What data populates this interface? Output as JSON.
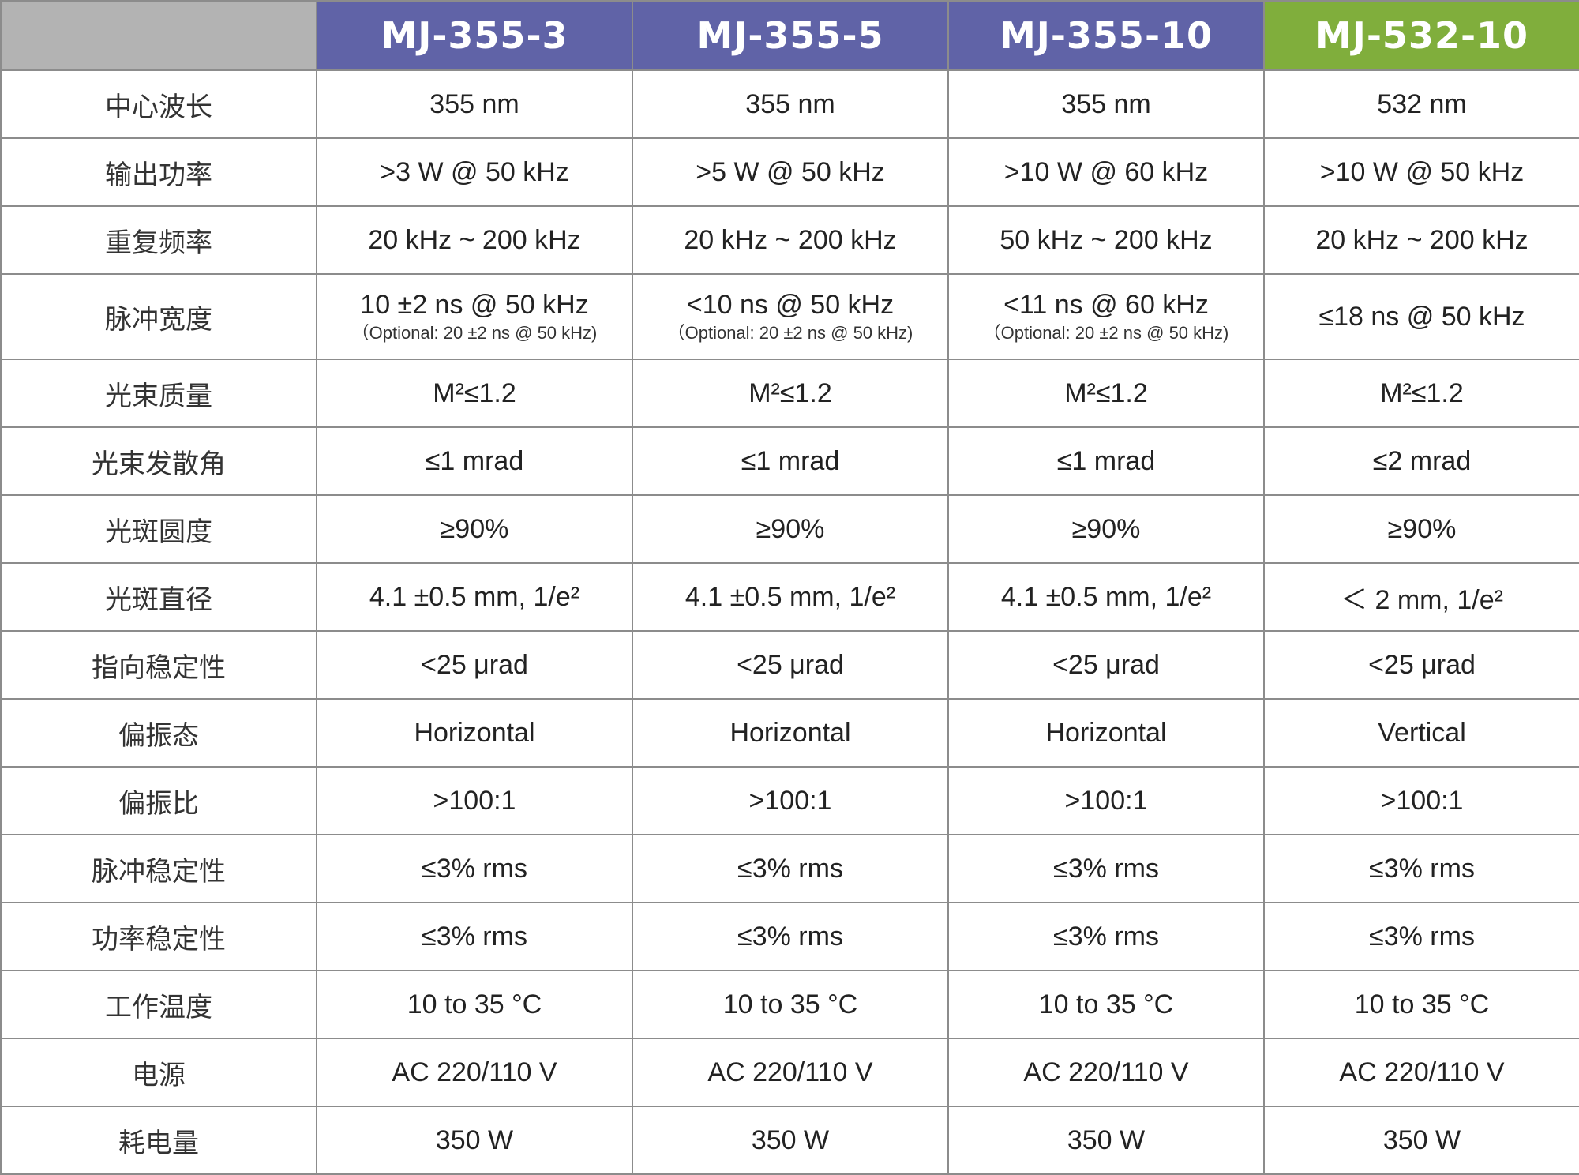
{
  "header": {
    "corner": "",
    "models": [
      {
        "name": "MJ-355-3",
        "color": "#6063a7"
      },
      {
        "name": "MJ-355-5",
        "color": "#6063a7"
      },
      {
        "name": "MJ-355-10",
        "color": "#6063a7"
      },
      {
        "name": "MJ-532-10",
        "color": "#80ae3c"
      }
    ]
  },
  "rows": [
    {
      "label": "中心波长",
      "values": [
        "355 nm",
        "355 nm",
        "355 nm",
        "532 nm"
      ]
    },
    {
      "label": "输出功率",
      "values": [
        ">3 W @ 50 kHz",
        ">5 W @ 50 kHz",
        ">10 W @ 60 kHz",
        ">10 W @ 50 kHz"
      ]
    },
    {
      "label": "重复频率",
      "values": [
        "20 kHz ~ 200 kHz",
        "20 kHz ~ 200 kHz",
        "50 kHz ~ 200 kHz",
        "20 kHz ~ 200 kHz"
      ]
    },
    {
      "label": "脉冲宽度",
      "values": [
        "10 ±2 ns @ 50 kHz",
        "<10 ns @ 50 kHz",
        "<11 ns @ 60 kHz",
        "≤18 ns @ 50 kHz"
      ],
      "notes": [
        "（Optional: 20 ±2 ns @ 50 kHz)",
        "（Optional: 20 ±2 ns @ 50 kHz)",
        "（Optional: 20 ±2 ns @ 50 kHz)",
        ""
      ]
    },
    {
      "label": "光束质量",
      "values": [
        "M²≤1.2",
        "M²≤1.2",
        "M²≤1.2",
        "M²≤1.2"
      ]
    },
    {
      "label": "光束发散角",
      "values": [
        "≤1 mrad",
        "≤1 mrad",
        "≤1 mrad",
        "≤2 mrad"
      ]
    },
    {
      "label": "光斑圆度",
      "values": [
        "≥90%",
        "≥90%",
        "≥90%",
        "≥90%"
      ]
    },
    {
      "label": "光斑直径",
      "values": [
        "4.1 ±0.5 mm, 1/e²",
        "4.1 ±0.5 mm, 1/e²",
        "4.1 ±0.5 mm, 1/e²",
        "＜ 2 mm, 1/e²"
      ]
    },
    {
      "label": "指向稳定性",
      "values": [
        "<25 μrad",
        "<25 μrad",
        "<25 μrad",
        "<25 μrad"
      ]
    },
    {
      "label": "偏振态",
      "values": [
        "Horizontal",
        "Horizontal",
        "Horizontal",
        "Vertical"
      ]
    },
    {
      "label": "偏振比",
      "values": [
        ">100:1",
        ">100:1",
        ">100:1",
        ">100:1"
      ]
    },
    {
      "label": "脉冲稳定性",
      "values": [
        "≤3% rms",
        "≤3% rms",
        "≤3% rms",
        "≤3% rms"
      ]
    },
    {
      "label": "功率稳定性",
      "values": [
        "≤3% rms",
        "≤3% rms",
        "≤3% rms",
        "≤3% rms"
      ]
    },
    {
      "label": "工作温度",
      "values": [
        "10 to 35 °C",
        "10 to 35 °C",
        "10 to 35 °C",
        "10 to 35 °C"
      ]
    },
    {
      "label": "电源",
      "values": [
        "AC 220/110 V",
        "AC 220/110 V",
        "AC 220/110 V",
        "AC 220/110 V"
      ]
    },
    {
      "label": "耗电量",
      "values": [
        "350 W",
        "350 W",
        "350 W",
        "350 W"
      ]
    }
  ]
}
